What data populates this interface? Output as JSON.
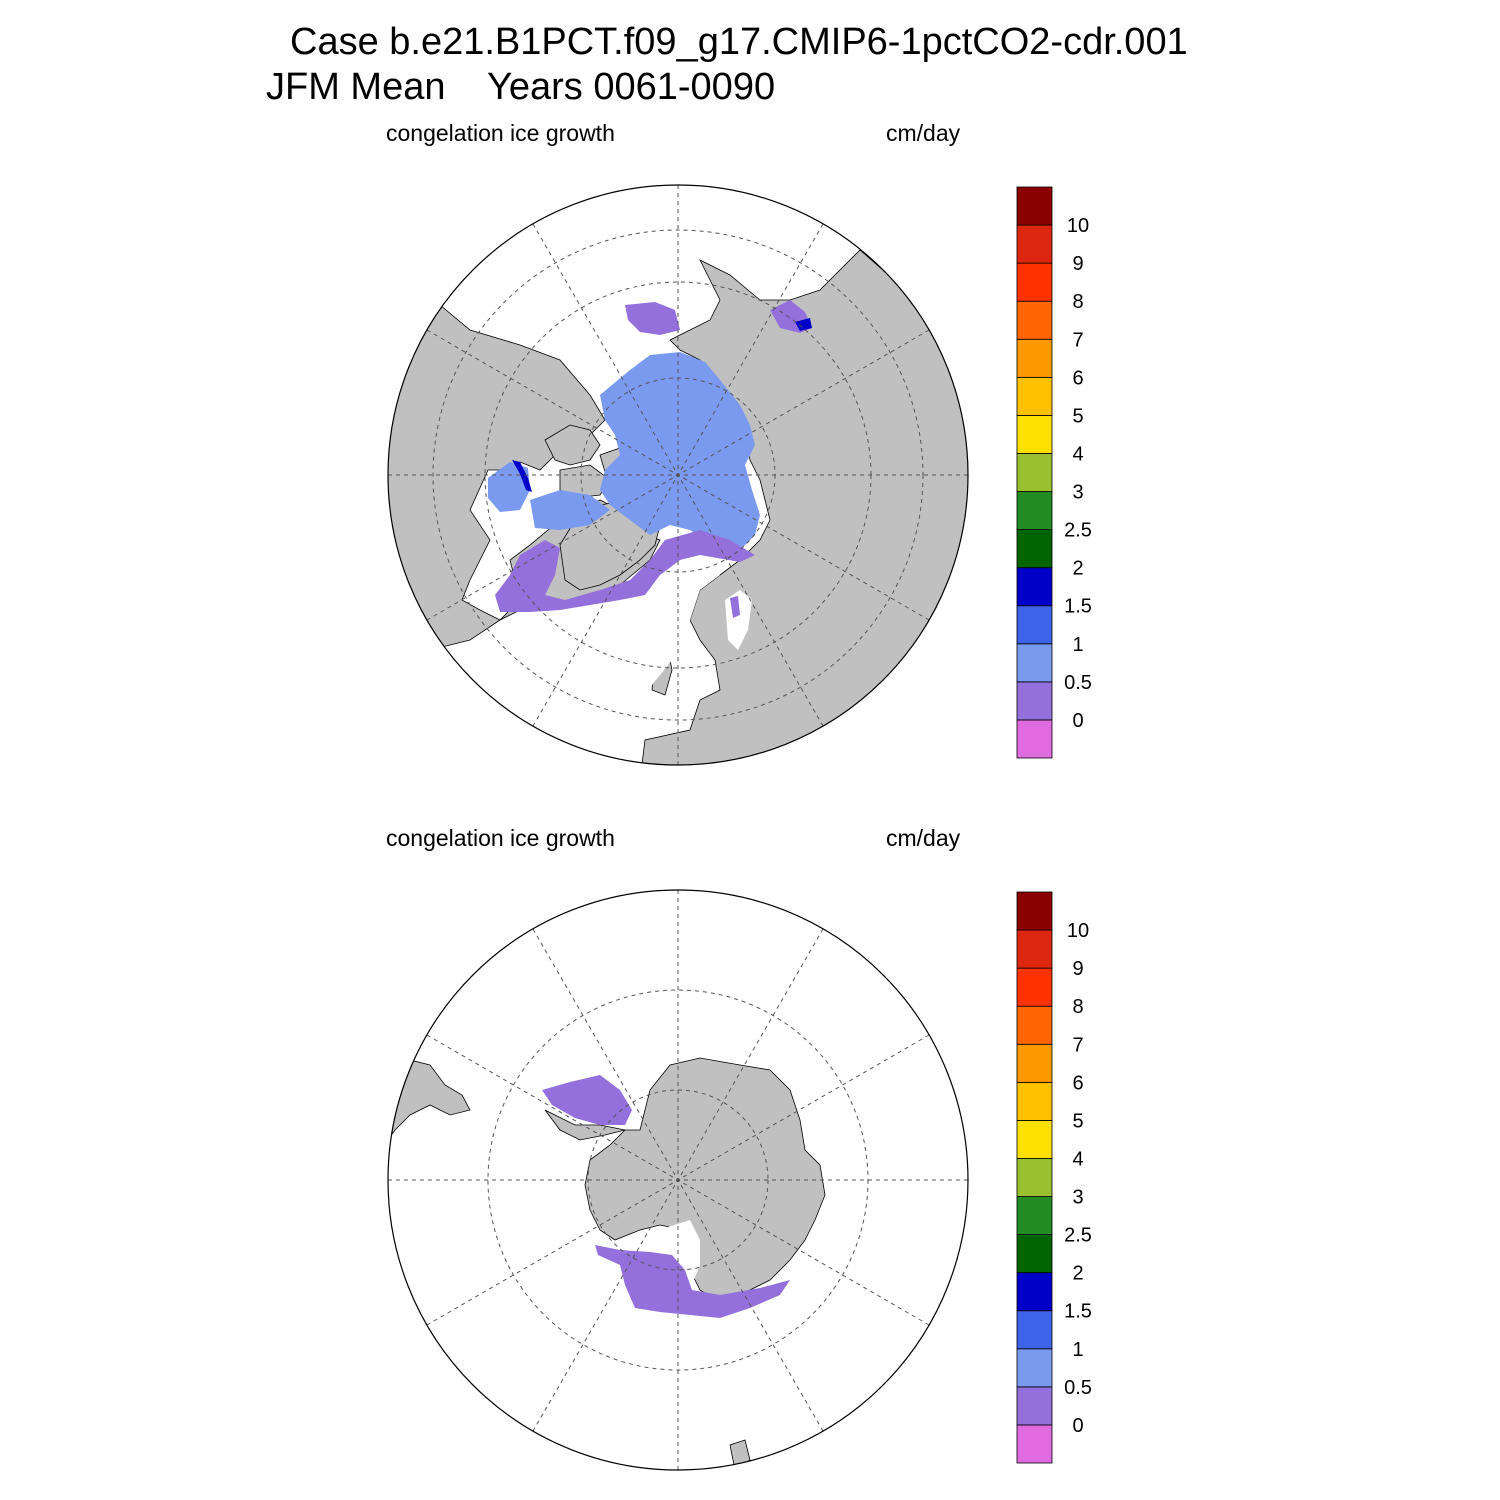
{
  "title": {
    "line1": "Case b.e21.B1PCT.f09_g17.CMIP6-1pctCO2-cdr.001",
    "line2": "JFM Mean    Years 0061-0090"
  },
  "panels": [
    {
      "id": "north",
      "label_left": "congelation ice growth",
      "label_right": "cm/day"
    },
    {
      "id": "south",
      "label_left": "congelation ice growth",
      "label_right": "cm/day"
    }
  ],
  "colorbar": {
    "labels": [
      "0",
      "0.5",
      "1",
      "1.5",
      "2",
      "2.5",
      "3",
      "4",
      "5",
      "6",
      "7",
      "8",
      "9",
      "10"
    ],
    "colors": [
      "#e06be0",
      "#9370db",
      "#7a9af0",
      "#3d64e8",
      "#0000c8",
      "#006400",
      "#228b22",
      "#9ac030",
      "#ffe000",
      "#ffc000",
      "#ff9900",
      "#ff6600",
      "#ff3300",
      "#dd2610",
      "#8b0000"
    ]
  },
  "map_colors": {
    "land": "#c0c0c0",
    "ocean": "#ffffff",
    "ice_low": "#9370db",
    "ice_mid": "#7a9af0",
    "ice_high": "#3d64e8",
    "ice_edge": "#0000c8"
  }
}
